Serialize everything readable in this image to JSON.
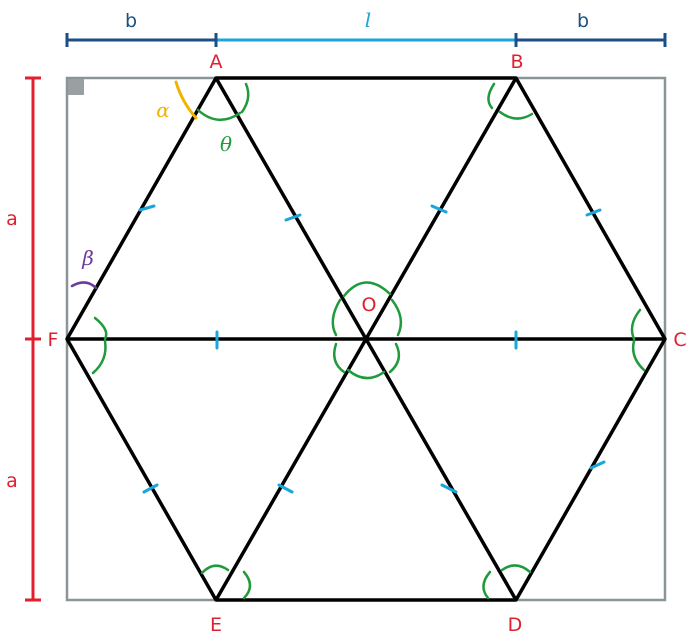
{
  "vertices": {
    "A": "A",
    "B": "B",
    "C": "C",
    "D": "D",
    "E": "E",
    "F": "F",
    "O": "O"
  },
  "dimensions": {
    "top_left": "b",
    "top_middle": "l",
    "top_right": "b",
    "left_upper": "a",
    "left_lower": "a"
  },
  "angles": {
    "alpha": "α",
    "beta": "β",
    "theta": "θ"
  },
  "colors": {
    "outline": "#000000",
    "frame": "#8a9597",
    "corner_square": "#9aa0a2",
    "vertex_label": "#e0202e",
    "dim_b": "#1b4f86",
    "dim_l": "#1aa6dc",
    "dim_a": "#e0202e",
    "tick": "#1aa6dc",
    "arc_green": "#1f9a3c",
    "alpha": "#f0b400",
    "beta": "#6a3a9c"
  }
}
